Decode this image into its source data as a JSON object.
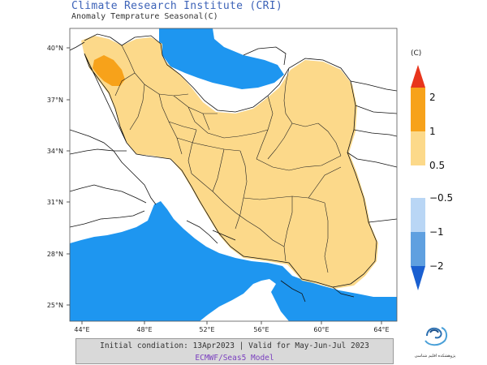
{
  "header": {
    "title": "Climate Research Institute (CRI)",
    "subtitle": "Anomaly Temprature Seasonal(C)"
  },
  "map": {
    "lat_labels": [
      "40°N",
      "37°N",
      "34°N",
      "31°N",
      "28°N",
      "25°N"
    ],
    "lon_labels": [
      "44°E",
      "48°E",
      "52°E",
      "56°E",
      "60°E",
      "64°E"
    ],
    "colors": {
      "sea": "#1e96f0",
      "anomaly_0_5_to_1": "#fcd98a",
      "anomaly_1_to_2": "#f7a21a",
      "border": "#111111"
    }
  },
  "legend": {
    "unit": "(C)",
    "warm_labels": [
      "2",
      "1",
      "0.5"
    ],
    "cold_labels": [
      "−0.5",
      "−1",
      "−2"
    ],
    "warm_colors": [
      "#e8351c",
      "#f7a21a",
      "#fcd98a"
    ],
    "cold_colors": [
      "#b9d6f5",
      "#5fa0e0",
      "#1a5fd0"
    ]
  },
  "footer": {
    "line1": "Initial condiation: 13Apr2023 | Valid for May-Jun-Jul 2023",
    "line2": "ECMWF/Seas5 Model"
  },
  "logo": {
    "caption": "پژوهشکده اقلیم شناسی"
  }
}
